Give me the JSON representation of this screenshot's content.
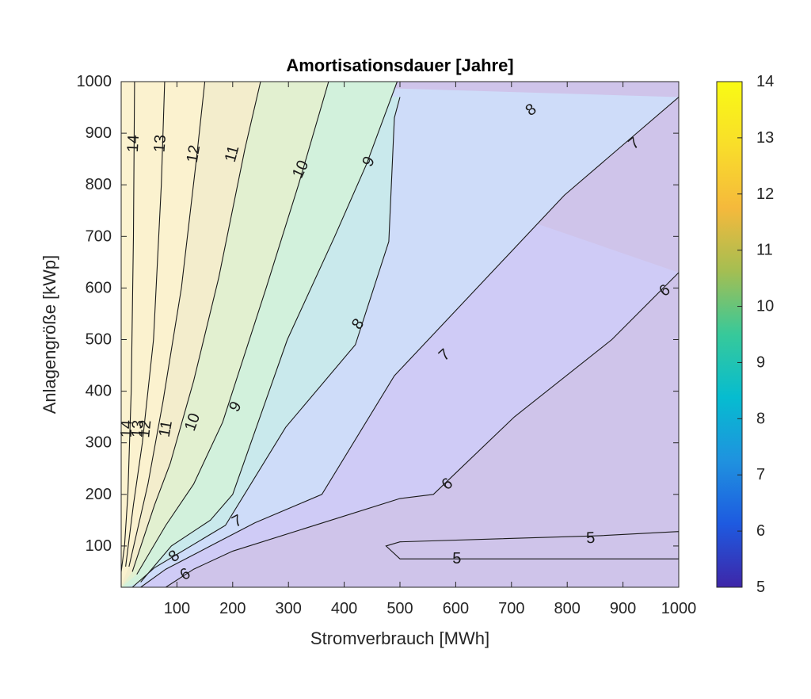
{
  "chart_data": {
    "type": "contour",
    "title": "Amortisationsdauer [Jahre]",
    "xlabel": "Stromverbrauch [MWh]",
    "ylabel": "Anlagengröße [kWp]",
    "xlim": [
      0,
      1000
    ],
    "ylim": [
      20,
      1000
    ],
    "xticks": [
      100,
      200,
      300,
      400,
      500,
      600,
      700,
      800,
      900,
      1000
    ],
    "yticks": [
      100,
      200,
      300,
      400,
      500,
      600,
      700,
      800,
      900,
      1000
    ],
    "colorbar": {
      "min": 5,
      "max": 14,
      "ticks": [
        5,
        6,
        7,
        8,
        9,
        10,
        11,
        12,
        13,
        14
      ]
    },
    "contours": [
      {
        "level": 14,
        "label": "14",
        "points": [
          [
            24,
            1000
          ],
          [
            22,
            700
          ],
          [
            18,
            400
          ],
          [
            12,
            200
          ],
          [
            6,
            100
          ],
          [
            0,
            50
          ]
        ]
      },
      {
        "level": 13,
        "label": "13",
        "points": [
          [
            78,
            1000
          ],
          [
            72,
            800
          ],
          [
            58,
            500
          ],
          [
            38,
            300
          ],
          [
            22,
            180
          ],
          [
            8,
            60
          ]
        ]
      },
      {
        "level": 12,
        "label": "12",
        "points": [
          [
            150,
            1000
          ],
          [
            135,
            850
          ],
          [
            108,
            600
          ],
          [
            75,
            380
          ],
          [
            48,
            220
          ],
          [
            14,
            60
          ]
        ]
      },
      {
        "level": 11,
        "label": "11",
        "points": [
          [
            250,
            1000
          ],
          [
            222,
            870
          ],
          [
            175,
            620
          ],
          [
            130,
            420
          ],
          [
            88,
            260
          ],
          [
            60,
            180
          ],
          [
            20,
            50
          ]
        ]
      },
      {
        "level": 10,
        "label": "10",
        "points": [
          [
            372,
            1000
          ],
          [
            318,
            800
          ],
          [
            260,
            600
          ],
          [
            182,
            340
          ],
          [
            130,
            220
          ],
          [
            80,
            140
          ],
          [
            28,
            45
          ]
        ]
      },
      {
        "level": 9,
        "label": "9",
        "points": [
          [
            495,
            1000
          ],
          [
            440,
            840
          ],
          [
            383,
            700
          ],
          [
            298,
            500
          ],
          [
            200,
            200
          ],
          [
            160,
            150
          ],
          [
            90,
            100
          ],
          [
            35,
            30
          ]
        ]
      },
      {
        "level": 8,
        "label": "8",
        "points": [
          [
            500,
            970
          ],
          [
            490,
            930
          ],
          [
            480,
            690
          ],
          [
            420,
            490
          ],
          [
            295,
            330
          ],
          [
            187,
            140
          ],
          [
            60,
            58
          ],
          [
            20,
            20
          ]
        ]
      },
      {
        "level": 7,
        "label": "7",
        "points": [
          [
            1000,
            970
          ],
          [
            795,
            780
          ],
          [
            490,
            430
          ],
          [
            360,
            200
          ],
          [
            240,
            145
          ],
          [
            160,
            100
          ],
          [
            80,
            55
          ],
          [
            35,
            20
          ]
        ]
      },
      {
        "level": 6,
        "label": "6",
        "points": [
          [
            1000,
            630
          ],
          [
            880,
            500
          ],
          [
            705,
            350
          ],
          [
            560,
            200
          ],
          [
            500,
            192
          ],
          [
            200,
            90
          ],
          [
            130,
            55
          ],
          [
            80,
            20
          ]
        ]
      },
      {
        "level": 5,
        "label": "5",
        "closed": true,
        "points": [
          [
            1000,
            128
          ],
          [
            860,
            120
          ],
          [
            500,
            108
          ],
          [
            475,
            100
          ],
          [
            500,
            75
          ],
          [
            1000,
            75
          ]
        ]
      }
    ],
    "contour_labels": [
      {
        "text": "14",
        "x": 22,
        "y": 880,
        "angle": -87
      },
      {
        "text": "13",
        "x": 70,
        "y": 880,
        "angle": -86
      },
      {
        "text": "12",
        "x": 130,
        "y": 860,
        "angle": -80
      },
      {
        "text": "11",
        "x": 199,
        "y": 860,
        "angle": -75
      },
      {
        "text": "10",
        "x": 322,
        "y": 830,
        "angle": -65
      },
      {
        "text": "9",
        "x": 444,
        "y": 845,
        "angle": -62
      },
      {
        "text": "8",
        "x": 735,
        "y": 945,
        "angle": -35
      },
      {
        "text": "7",
        "x": 920,
        "y": 880,
        "angle": -40
      },
      {
        "text": "14",
        "x": 10,
        "y": 327,
        "angle": -88
      },
      {
        "text": "13",
        "x": 30,
        "y": 327,
        "angle": -86
      },
      {
        "text": "12",
        "x": 43,
        "y": 327,
        "angle": -84
      },
      {
        "text": "11",
        "x": 80,
        "y": 327,
        "angle": -80
      },
      {
        "text": "10",
        "x": 128,
        "y": 340,
        "angle": -70
      },
      {
        "text": "9",
        "x": 205,
        "y": 370,
        "angle": -60
      },
      {
        "text": "8",
        "x": 425,
        "y": 530,
        "angle": -55
      },
      {
        "text": "7",
        "x": 580,
        "y": 470,
        "angle": -42
      },
      {
        "text": "6",
        "x": 975,
        "y": 595,
        "angle": -38
      },
      {
        "text": "8",
        "x": 95,
        "y": 80,
        "angle": -40
      },
      {
        "text": "7",
        "x": 208,
        "y": 148,
        "angle": -28
      },
      {
        "text": "6",
        "x": 585,
        "y": 220,
        "angle": -38
      },
      {
        "text": "6",
        "x": 115,
        "y": 45,
        "angle": -30
      },
      {
        "text": "5",
        "x": 842,
        "y": 115,
        "angle": -3
      },
      {
        "text": "5",
        "x": 602,
        "y": 75,
        "angle": 0
      }
    ],
    "colors": {
      "region_fills": [
        "#cfc4ea",
        "#cfcbf6",
        "#cedcf9",
        "#c9e9ec",
        "#d2f1dc",
        "#e2f0d0",
        "#f3edcc",
        "#fbf2cf"
      ],
      "colorbar_stops": [
        "#3e26a8",
        "#1e5ae0",
        "#1f92df",
        "#06bcd0",
        "#37c99a",
        "#a4be52",
        "#f5b93c",
        "#f9de2a",
        "#f9fa14"
      ]
    }
  }
}
